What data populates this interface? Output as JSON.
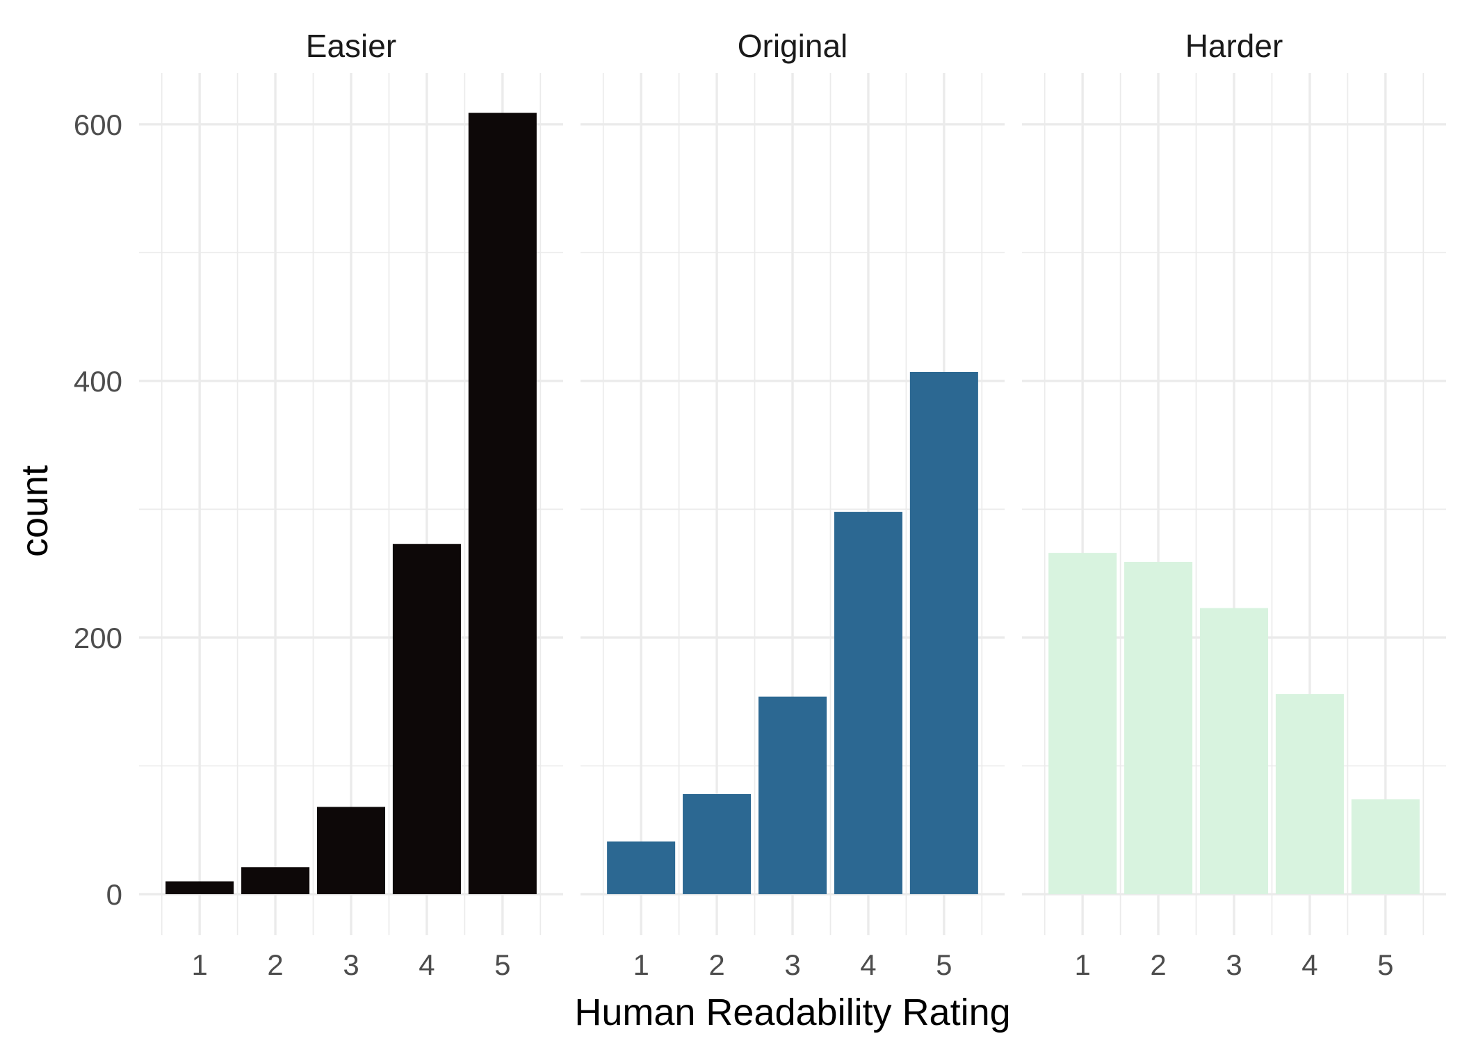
{
  "chart_data": {
    "type": "bar",
    "facet_labels": [
      "Easier",
      "Original",
      "Harder"
    ],
    "categories": [
      "1",
      "2",
      "3",
      "4",
      "5"
    ],
    "series": [
      {
        "facet": "Easier",
        "values": [
          10,
          21,
          68,
          273,
          609
        ],
        "color": "#0d0808"
      },
      {
        "facet": "Original",
        "values": [
          41,
          78,
          154,
          298,
          407
        ],
        "color": "#2c6892"
      },
      {
        "facet": "Harder",
        "values": [
          266,
          259,
          223,
          156,
          74
        ],
        "color": "#d8f3df"
      }
    ],
    "xlabel": "Human Readability Rating",
    "ylabel": "count",
    "y_ticks": [
      0,
      200,
      400,
      600
    ],
    "ylim": [
      -32,
      640
    ],
    "grid": true
  }
}
